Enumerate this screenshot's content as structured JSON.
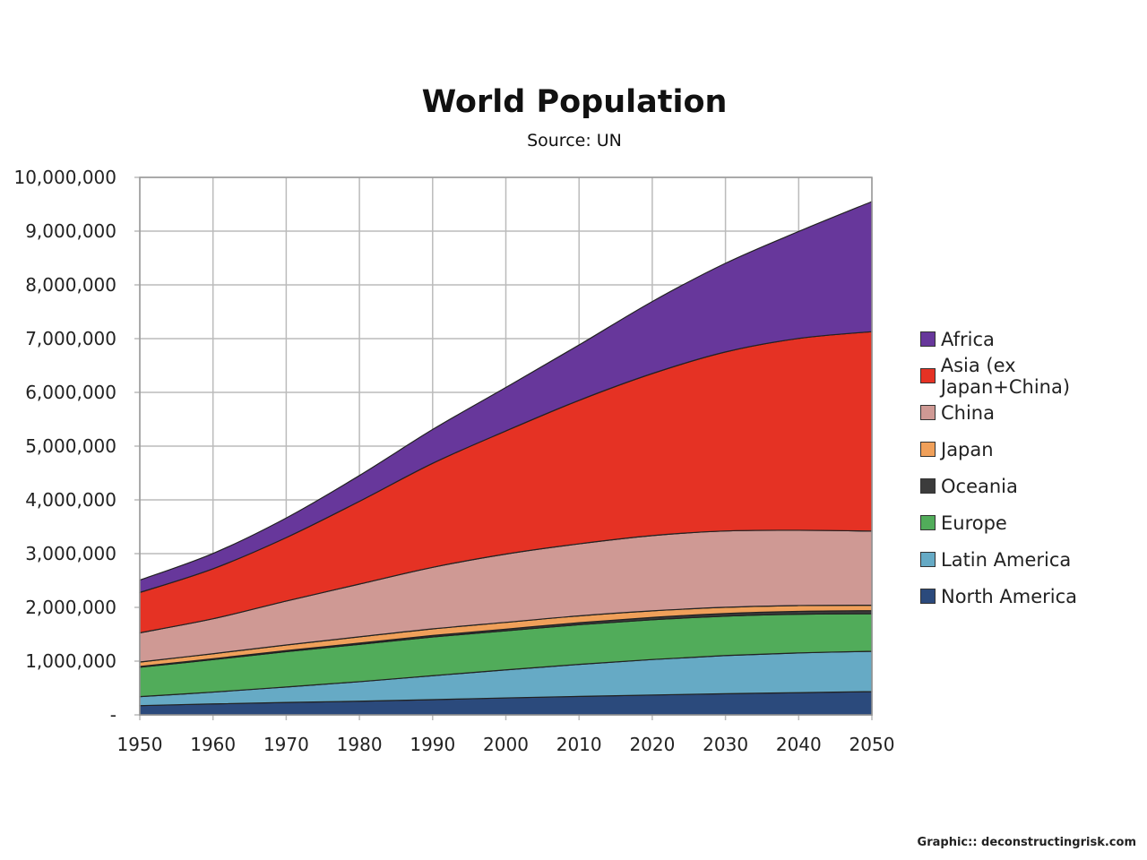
{
  "chart_data": {
    "type": "area",
    "stacked": true,
    "title": "World Population",
    "subtitle": "Source: UN",
    "xlabel": "",
    "ylabel": "",
    "x": [
      1950,
      1960,
      1970,
      1980,
      1990,
      2000,
      2010,
      2020,
      2030,
      2040,
      2050
    ],
    "xticks": [
      "1950",
      "1960",
      "1970",
      "1980",
      "1990",
      "2000",
      "2010",
      "2020",
      "2030",
      "2040",
      "2050"
    ],
    "yticks": [
      "-",
      "1,000,000",
      "2,000,000",
      "3,000,000",
      "4,000,000",
      "5,000,000",
      "6,000,000",
      "7,000,000",
      "8,000,000",
      "9,000,000",
      "10,000,000"
    ],
    "ylim": [
      0,
      10000000
    ],
    "grid": true,
    "legend_position": "right",
    "series": [
      {
        "name": "North America",
        "color": "#2b4a7c",
        "values": [
          172000,
          204000,
          231000,
          254000,
          283000,
          316000,
          344000,
          370000,
          394000,
          413000,
          433000
        ]
      },
      {
        "name": "Latin America",
        "color": "#66aac5",
        "values": [
          168000,
          220000,
          288000,
          364000,
          446000,
          522000,
          596000,
          660000,
          710000,
          740000,
          750000
        ]
      },
      {
        "name": "Europe",
        "color": "#51ac5a",
        "values": [
          547000,
          604000,
          657000,
          694000,
          721000,
          726000,
          738000,
          740000,
          734000,
          720000,
          700000
        ]
      },
      {
        "name": "Oceania",
        "color": "#3c3c3c",
        "values": [
          13000,
          16000,
          20000,
          23000,
          27000,
          31000,
          37000,
          43000,
          48000,
          53000,
          57000
        ]
      },
      {
        "name": "Japan",
        "color": "#f0a05a",
        "values": [
          83000,
          94000,
          104000,
          117000,
          123000,
          127000,
          127000,
          122000,
          116000,
          108000,
          100000
        ]
      },
      {
        "name": "China",
        "color": "#cf9994",
        "values": [
          544000,
          650000,
          818000,
          981000,
          1145000,
          1270000,
          1340000,
          1400000,
          1420000,
          1400000,
          1380000
        ]
      },
      {
        "name": "Asia (ex Japan+China)",
        "color": "#e53224",
        "values": [
          750000,
          930000,
          1180000,
          1540000,
          1935000,
          2290000,
          2670000,
          3015000,
          3330000,
          3570000,
          3710000
        ]
      },
      {
        "name": "Africa",
        "color": "#67379b",
        "values": [
          230000,
          285000,
          365000,
          480000,
          630000,
          810000,
          1030000,
          1340000,
          1650000,
          1990000,
          2420000
        ]
      }
    ]
  },
  "credit": "Graphic:: deconstructingrisk.com"
}
